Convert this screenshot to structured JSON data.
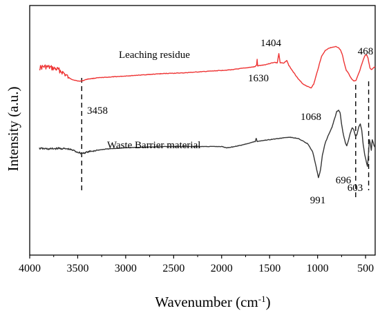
{
  "chart_data": {
    "type": "line",
    "xlabel": "Wavenumber (cm",
    "xlabel_sup": "-1",
    "xlabel_close": ")",
    "ylabel": "Intensity (a.u.)",
    "x_reversed": true,
    "xlim": [
      4000,
      400
    ],
    "y_ticks_shown": false,
    "grid": false,
    "x_ticks": [
      4000,
      3500,
      3000,
      2500,
      2000,
      1500,
      1000,
      500
    ],
    "series": [
      {
        "name": "Leaching residue",
        "color": "#ee3333",
        "noise": 4,
        "noise_x_range": [
          3900,
          3600
        ],
        "points": [
          [
            3900,
            100
          ],
          [
            3850,
            98
          ],
          [
            3800,
            99
          ],
          [
            3750,
            101
          ],
          [
            3700,
            103
          ],
          [
            3650,
            108
          ],
          [
            3600,
            115
          ],
          [
            3550,
            119
          ],
          [
            3500,
            121
          ],
          [
            3458,
            121
          ],
          [
            3400,
            118
          ],
          [
            3300,
            116
          ],
          [
            3200,
            115
          ],
          [
            3000,
            113
          ],
          [
            2800,
            111
          ],
          [
            2600,
            109
          ],
          [
            2400,
            108
          ],
          [
            2200,
            106
          ],
          [
            2000,
            104
          ],
          [
            1900,
            103
          ],
          [
            1800,
            101
          ],
          [
            1700,
            99
          ],
          [
            1650,
            98
          ],
          [
            1635,
            95
          ],
          [
            1630,
            86
          ],
          [
            1625,
            97
          ],
          [
            1600,
            96
          ],
          [
            1550,
            95
          ],
          [
            1500,
            93
          ],
          [
            1450,
            91
          ],
          [
            1420,
            92
          ],
          [
            1404,
            77
          ],
          [
            1390,
            92
          ],
          [
            1350,
            92
          ],
          [
            1320,
            88
          ],
          [
            1300,
            96
          ],
          [
            1250,
            107
          ],
          [
            1200,
            118
          ],
          [
            1150,
            126
          ],
          [
            1100,
            130
          ],
          [
            1068,
            132
          ],
          [
            1040,
            126
          ],
          [
            1000,
            104
          ],
          [
            960,
            82
          ],
          [
            920,
            72
          ],
          [
            880,
            68
          ],
          [
            840,
            67
          ],
          [
            810,
            66
          ],
          [
            780,
            68
          ],
          [
            760,
            72
          ],
          [
            740,
            80
          ],
          [
            720,
            94
          ],
          [
            700,
            104
          ],
          [
            680,
            108
          ],
          [
            660,
            114
          ],
          [
            640,
            119
          ],
          [
            620,
            121
          ],
          [
            600,
            120
          ],
          [
            580,
            112
          ],
          [
            560,
            104
          ],
          [
            540,
            94
          ],
          [
            520,
            85
          ],
          [
            505,
            80
          ],
          [
            490,
            79
          ],
          [
            475,
            84
          ],
          [
            468,
            90
          ],
          [
            455,
            100
          ],
          [
            440,
            103
          ],
          [
            420,
            100
          ],
          [
            400,
            98
          ]
        ]
      },
      {
        "name": "Waste Barrier material",
        "color": "#333333",
        "noise": 1.5,
        "noise_x_range": [
          3900,
          3300
        ],
        "points": [
          [
            3900,
            229
          ],
          [
            3800,
            230
          ],
          [
            3700,
            229
          ],
          [
            3600,
            230
          ],
          [
            3550,
            232
          ],
          [
            3500,
            235
          ],
          [
            3458,
            237
          ],
          [
            3400,
            235
          ],
          [
            3300,
            232
          ],
          [
            3200,
            230
          ],
          [
            3000,
            228
          ],
          [
            2800,
            227
          ],
          [
            2600,
            226
          ],
          [
            2400,
            226
          ],
          [
            2200,
            226
          ],
          [
            2000,
            226
          ],
          [
            1950,
            228
          ],
          [
            1900,
            227
          ],
          [
            1800,
            224
          ],
          [
            1700,
            220
          ],
          [
            1650,
            218
          ],
          [
            1640,
            213
          ],
          [
            1630,
            218
          ],
          [
            1600,
            217
          ],
          [
            1500,
            215
          ],
          [
            1400,
            213
          ],
          [
            1300,
            211
          ],
          [
            1200,
            213
          ],
          [
            1100,
            222
          ],
          [
            1050,
            235
          ],
          [
            1020,
            255
          ],
          [
            991,
            276
          ],
          [
            970,
            264
          ],
          [
            950,
            240
          ],
          [
            920,
            220
          ],
          [
            880,
            205
          ],
          [
            850,
            195
          ],
          [
            820,
            180
          ],
          [
            800,
            170
          ],
          [
            780,
            168
          ],
          [
            765,
            172
          ],
          [
            750,
            190
          ],
          [
            730,
            208
          ],
          [
            710,
            220
          ],
          [
            696,
            225
          ],
          [
            680,
            217
          ],
          [
            660,
            205
          ],
          [
            640,
            196
          ],
          [
            625,
            198
          ],
          [
            603,
            210
          ],
          [
            590,
            207
          ],
          [
            570,
            194
          ],
          [
            555,
            190
          ],
          [
            540,
            200
          ],
          [
            525,
            222
          ],
          [
            510,
            238
          ],
          [
            500,
            245
          ],
          [
            490,
            252
          ],
          [
            480,
            258
          ],
          [
            470,
            238
          ],
          [
            460,
            215
          ],
          [
            450,
            222
          ],
          [
            440,
            232
          ],
          [
            430,
            215
          ],
          [
            420,
            220
          ],
          [
            410,
            225
          ],
          [
            400,
            228
          ]
        ]
      }
    ],
    "series_labels": [
      {
        "text": "Leaching residue",
        "series": 0
      },
      {
        "text": "Waste Barrier material",
        "series": 1
      }
    ],
    "peak_labels": [
      "1404",
      "1630",
      "1068",
      "468",
      "3458",
      "696",
      "603",
      "991"
    ],
    "marker_lines": [
      3458,
      603,
      468
    ]
  }
}
